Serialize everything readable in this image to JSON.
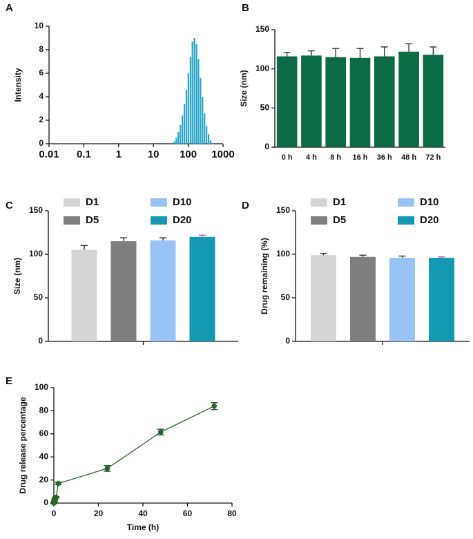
{
  "chart_data": [
    {
      "type": "bar",
      "panel_label": "A",
      "x_scale": "log",
      "x": [
        39.8,
        45.5,
        52.0,
        59.4,
        67.9,
        77.6,
        88.7,
        101,
        116,
        132,
        151,
        173,
        197,
        226,
        258,
        295,
        337,
        385,
        440
      ],
      "values": [
        0.2,
        0.5,
        1,
        1.6,
        2.4,
        3.4,
        4.6,
        6,
        7.4,
        8.7,
        9,
        8.5,
        7.2,
        5.6,
        4,
        2.6,
        1.5,
        0.8,
        0.3
      ],
      "color": "#2aa6c8",
      "xlim": [
        0.01,
        1000
      ],
      "xticks": [
        0.01,
        0.1,
        1,
        10,
        100,
        1000
      ],
      "ylim": [
        0,
        10
      ],
      "yticks": [
        0,
        2,
        4,
        6,
        8,
        10
      ],
      "ylabel": "Intensity"
    },
    {
      "type": "bar",
      "panel_label": "B",
      "categories": [
        "0 h",
        "4 h",
        "8 h",
        "16 h",
        "36 h",
        "48 h",
        "72 h"
      ],
      "values": [
        116,
        117,
        115,
        114,
        116,
        122,
        118
      ],
      "errors": [
        5,
        6,
        11,
        12,
        12,
        10,
        10
      ],
      "color": "#0b6b45",
      "ylim": [
        0,
        150
      ],
      "yticks": [
        0,
        50,
        100,
        150
      ],
      "ylabel": "Size (nm)"
    },
    {
      "type": "bar",
      "panel_label": "C",
      "categories": [
        null
      ],
      "series": [
        {
          "name": "D1",
          "color": "#d4d4d4",
          "error_color": "#222222",
          "values": [
            105
          ],
          "errors": [
            5
          ]
        },
        {
          "name": "D5",
          "color": "#7f7f7f",
          "error_color": "#222222",
          "values": [
            115
          ],
          "errors": [
            4
          ]
        },
        {
          "name": "D10",
          "color": "#99c2f5",
          "error_color": "#222222",
          "values": [
            116
          ],
          "errors": [
            3
          ]
        },
        {
          "name": "D20",
          "color": "#1499b2",
          "error_color": "#c040c0",
          "values": [
            120
          ],
          "errors": [
            2
          ]
        }
      ],
      "ylim": [
        0,
        150
      ],
      "yticks": [
        0,
        50,
        100,
        150
      ],
      "ylabel": "Size (nm)"
    },
    {
      "type": "bar",
      "panel_label": "D",
      "categories": [
        null
      ],
      "series": [
        {
          "name": "D1",
          "color": "#d4d4d4",
          "error_color": "#222222",
          "values": [
            99
          ],
          "errors": [
            2
          ]
        },
        {
          "name": "D5",
          "color": "#7f7f7f",
          "error_color": "#222222",
          "values": [
            97
          ],
          "errors": [
            2
          ]
        },
        {
          "name": "D10",
          "color": "#99c2f5",
          "error_color": "#222222",
          "values": [
            96
          ],
          "errors": [
            2
          ]
        },
        {
          "name": "D20",
          "color": "#1499b2",
          "error_color": "#c040c0",
          "values": [
            96
          ],
          "errors": [
            1
          ]
        }
      ],
      "ylim": [
        0,
        150
      ],
      "yticks": [
        0,
        50,
        100,
        150
      ],
      "ylabel": "Drug remaining (%)"
    },
    {
      "type": "line",
      "panel_label": "E",
      "x": [
        0,
        0.25,
        0.5,
        1,
        2,
        24,
        48,
        72
      ],
      "values": [
        0,
        2,
        4,
        5,
        17,
        30,
        61.5,
        84
      ],
      "errors": [
        0.5,
        0.5,
        0.5,
        0.5,
        1,
        2.5,
        2.5,
        3
      ],
      "color": "#1e6b1e",
      "xlim": [
        0,
        80
      ],
      "xticks": [
        0,
        20,
        40,
        60,
        80
      ],
      "ylim": [
        0,
        100
      ],
      "yticks": [
        0,
        20,
        40,
        60,
        80,
        100
      ],
      "xlabel": "Time (h)",
      "ylabel": "Drug release percentage"
    }
  ]
}
